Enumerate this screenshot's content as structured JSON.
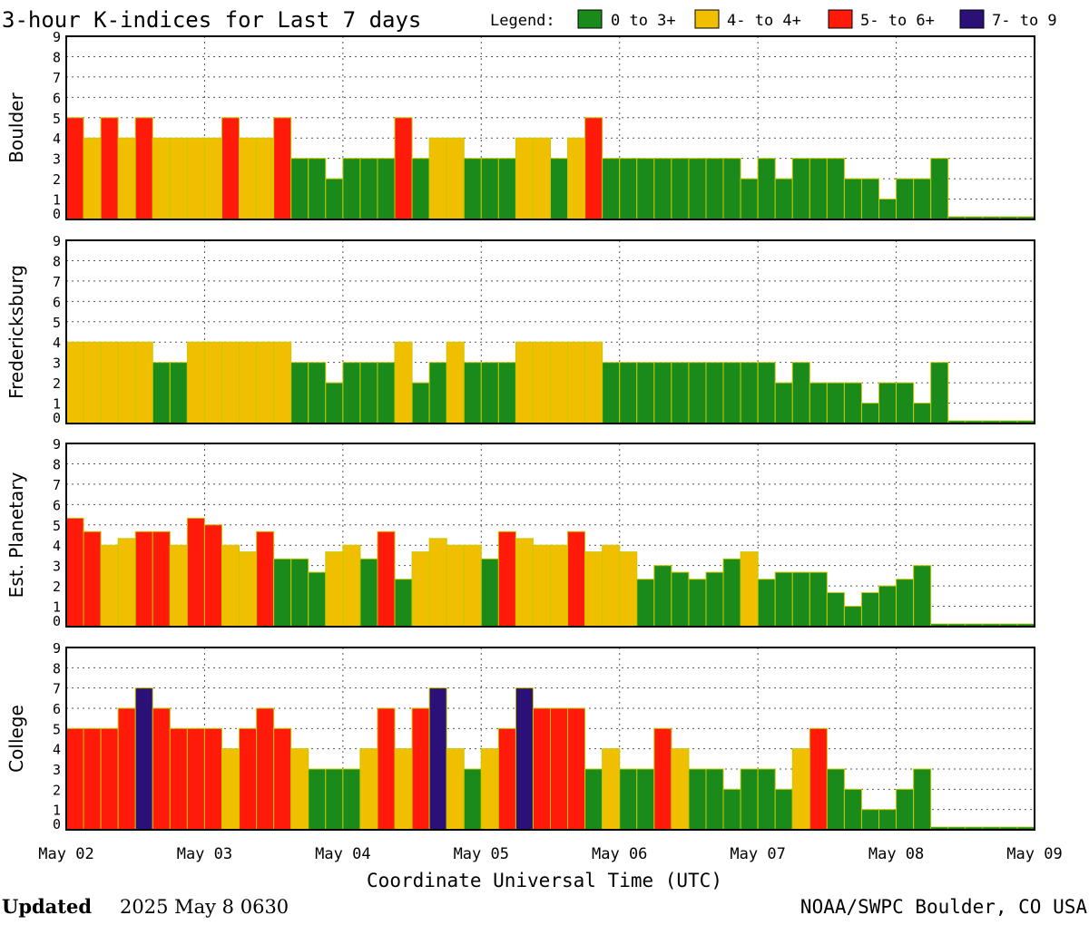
{
  "chart_data": {
    "type": "bar",
    "title": "3-hour K-indices for Last 7 days",
    "legend_title": "Legend:",
    "legend": [
      {
        "label": "0 to 3+",
        "color": "#1a8a1a"
      },
      {
        "label": "4- to 4+",
        "color": "#f0c000"
      },
      {
        "label": "5- to 6+",
        "color": "#ff1a0a"
      },
      {
        "label": "7- to 9",
        "color": "#2a1077"
      }
    ],
    "y_ticks": [
      "0",
      "1",
      "2",
      "3",
      "4",
      "5",
      "6",
      "7",
      "8",
      "9"
    ],
    "ylim": [
      0,
      9
    ],
    "x_ticks": [
      "May 02",
      "May 03",
      "May 04",
      "May 05",
      "May 06",
      "May 07",
      "May 08",
      "May 09"
    ],
    "xlabel": "Coordinate Universal Time (UTC)",
    "series": [
      {
        "name": "Boulder",
        "values": [
          5,
          4,
          5,
          4,
          5,
          4,
          4,
          4,
          4,
          5,
          4,
          4,
          5,
          3,
          3,
          2,
          3,
          3,
          3,
          5,
          3,
          4,
          4,
          3,
          3,
          3,
          4,
          4,
          3,
          4,
          5,
          3,
          3,
          3,
          3,
          3,
          3,
          3,
          3,
          2,
          3,
          2,
          3,
          3,
          3,
          2,
          2,
          1,
          2,
          2,
          3,
          0,
          0,
          0,
          0,
          0
        ]
      },
      {
        "name": "Fredericksburg",
        "values": [
          4,
          4,
          4,
          4,
          4,
          3,
          3,
          4,
          4,
          4,
          4,
          4,
          4,
          3,
          3,
          2,
          3,
          3,
          3,
          4,
          2,
          3,
          4,
          3,
          3,
          3,
          4,
          4,
          4,
          4,
          4,
          3,
          3,
          3,
          3,
          3,
          3,
          3,
          3,
          3,
          3,
          2,
          3,
          2,
          2,
          2,
          1,
          2,
          2,
          1,
          3,
          0,
          0,
          0,
          0,
          0
        ]
      },
      {
        "name": "Est. Planetary",
        "values": [
          5.33,
          4.67,
          4,
          4.33,
          4.67,
          4.67,
          4,
          5.33,
          5,
          4,
          3.67,
          4.67,
          3.33,
          3.33,
          2.67,
          3.67,
          4,
          3.33,
          4.67,
          2.33,
          3.67,
          4.33,
          4,
          4,
          3.33,
          4.67,
          4.33,
          4,
          4,
          4.67,
          3.67,
          4,
          3.67,
          2.33,
          3,
          2.67,
          2.33,
          2.67,
          3.33,
          3.67,
          2.33,
          2.67,
          2.67,
          2.67,
          1.67,
          1,
          1.67,
          2,
          2.33,
          3,
          0,
          0,
          0,
          0,
          0,
          0
        ]
      },
      {
        "name": "College",
        "values": [
          5,
          5,
          5,
          6,
          7,
          6,
          5,
          5,
          5,
          4,
          5,
          6,
          5,
          4,
          3,
          3,
          3,
          4,
          6,
          4,
          6,
          7,
          4,
          3,
          4,
          5,
          7,
          6,
          6,
          6,
          3,
          4,
          3,
          3,
          5,
          4,
          3,
          3,
          2,
          3,
          3,
          2,
          4,
          5,
          3,
          2,
          1,
          1,
          2,
          3,
          0,
          0,
          0,
          0,
          0,
          0
        ]
      }
    ]
  },
  "footer": {
    "updated_label": "Updated",
    "updated_value": "2025 May  8 0630",
    "credit": "NOAA/SWPC Boulder, CO USA"
  }
}
